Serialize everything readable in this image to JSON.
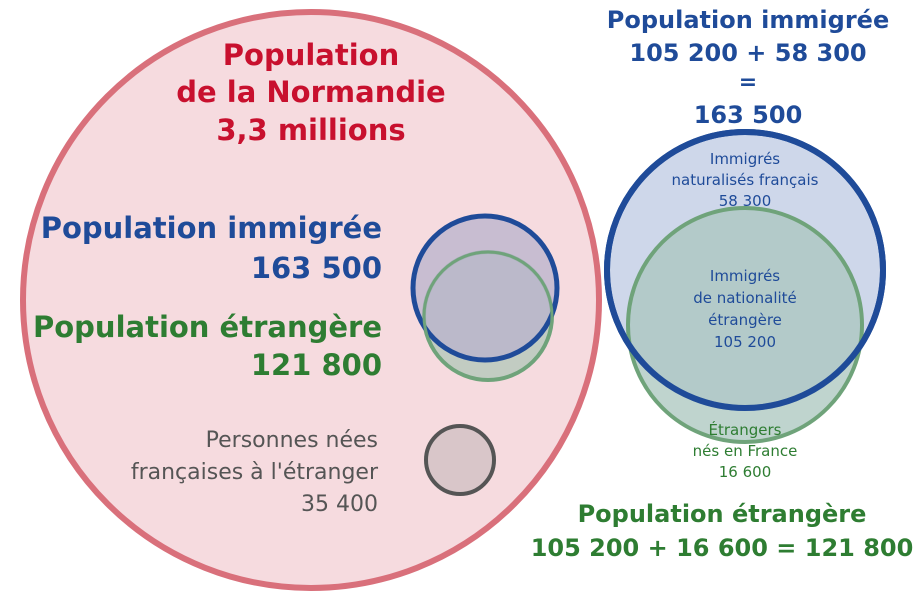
{
  "normandie": {
    "title_line1": "Population",
    "title_line2": "de la Normandie",
    "value": "3,3 millions"
  },
  "left_immigree": {
    "label": "Population immigrée",
    "value": "163 500"
  },
  "left_etrangere": {
    "label": "Population étrangère",
    "value": "121 800"
  },
  "left_francais_etranger": {
    "line1": "Personnes nées",
    "line2": "françaises à l'étranger",
    "value": "35 400"
  },
  "right_immigree": {
    "label": "Population immigrée",
    "formula": "105 200 + 58 300",
    "equals": "=",
    "total": "163 500"
  },
  "naturalises": {
    "line1": "Immigrés",
    "line2": "naturalisés français",
    "value": "58 300"
  },
  "immigres_etrangers": {
    "line1": "Immigrés",
    "line2": "de nationalité",
    "line3": "étrangère",
    "value": "105 200"
  },
  "etrangers_nes_france": {
    "line1": "Étrangers",
    "line2": "nés en France",
    "value": "16 600"
  },
  "right_etrangere": {
    "label": "Population étrangère",
    "formula": "105 200 + 16 600 = 121 800"
  },
  "colors": {
    "normandie_fill": "#f6dbdf",
    "normandie_stroke": "#d9707b",
    "immigree": "#1f4b99",
    "immigree_fill": "#c9d3e8",
    "etrangere": "#6fa37a",
    "etrangere_fill": "#b9cfc4",
    "francais_etranger_stroke": "#555555",
    "francais_etranger_fill": "#d9c6c9"
  }
}
